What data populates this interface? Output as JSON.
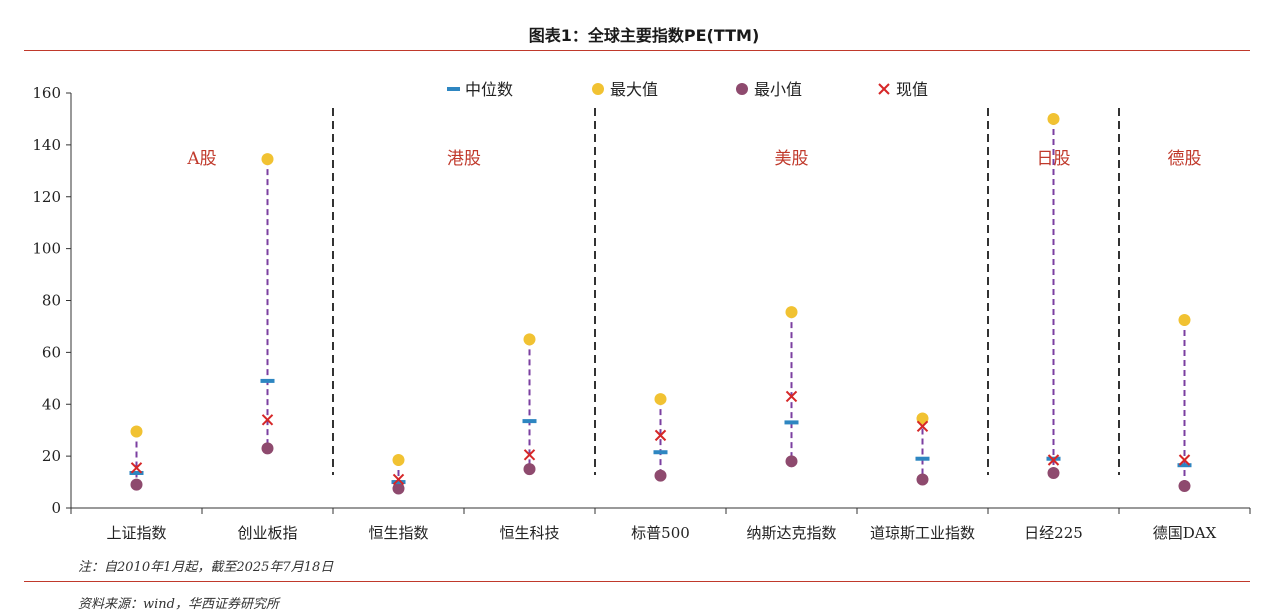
{
  "title": "图表1：全球主要指数PE(TTM)",
  "note": "注：自2010年1月起，截至2025年7月18日",
  "source": "资料来源：wind，华西证券研究所",
  "colors": {
    "median": "#2e86c1",
    "max": "#f1c232",
    "min": "#8e4a6e",
    "current": "#d62728",
    "range_line": "#7b3fa0",
    "region_label": "#c0392b",
    "axis": "#333333",
    "divider": "#000000"
  },
  "legend": [
    {
      "key": "median",
      "label": "中位数"
    },
    {
      "key": "max",
      "label": "最大值"
    },
    {
      "key": "min",
      "label": "最小值"
    },
    {
      "key": "current",
      "label": "现值"
    }
  ],
  "chart_data": {
    "type": "scatter",
    "title": "图表1：全球主要指数PE(TTM)",
    "ylim": [
      0,
      160
    ],
    "yticks": [
      0,
      20,
      40,
      60,
      80,
      100,
      120,
      140,
      160
    ],
    "grid": false,
    "legend_position": "top",
    "categories": [
      "上证指数",
      "创业板指",
      "恒生指数",
      "恒生科技",
      "标普500",
      "纳斯达克指数",
      "道琼斯工业指数",
      "日经225",
      "德国DAX"
    ],
    "series": [
      {
        "name": "中位数",
        "marker": "dash",
        "values": [
          13.5,
          49,
          10,
          33.5,
          21.5,
          33,
          19,
          19,
          16.5
        ]
      },
      {
        "name": "最大值",
        "marker": "circle",
        "values": [
          29.5,
          134.5,
          18.5,
          65,
          42,
          75.5,
          34.5,
          150,
          72.5
        ]
      },
      {
        "name": "最小值",
        "marker": "circle",
        "values": [
          9,
          23,
          7.5,
          15,
          12.5,
          18,
          11,
          13.5,
          8.5
        ]
      },
      {
        "name": "现值",
        "marker": "x",
        "values": [
          15.5,
          34,
          11,
          20.5,
          28,
          43,
          31.5,
          18.5,
          18.5
        ]
      }
    ],
    "groups": [
      {
        "label": "A股",
        "members": [
          0,
          1
        ]
      },
      {
        "label": "港股",
        "members": [
          2,
          3
        ]
      },
      {
        "label": "美股",
        "members": [
          4,
          5,
          6
        ]
      },
      {
        "label": "日股",
        "members": [
          7
        ]
      },
      {
        "label": "德股",
        "members": [
          8
        ]
      }
    ]
  }
}
